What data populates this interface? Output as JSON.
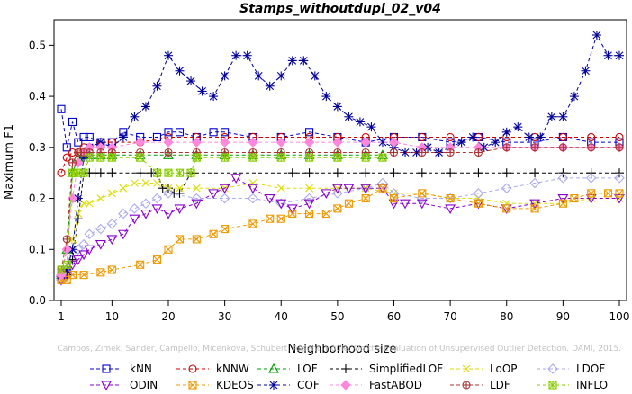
{
  "chart_data": {
    "type": "line",
    "title": "Stamps_withoutdupl_02_v04",
    "xlabel": "Neighborhood size",
    "ylabel": "Maximum F1",
    "xlim": [
      1,
      100
    ],
    "ylim": [
      0,
      0.55
    ],
    "xticks": [
      1,
      10,
      20,
      30,
      40,
      50,
      60,
      70,
      80,
      90,
      100
    ],
    "yticks": [
      0.0,
      0.1,
      0.2,
      0.3,
      0.4,
      0.5
    ],
    "xtick_labels": [
      "1",
      "10",
      "20",
      "30",
      "40",
      "50",
      "60",
      "70",
      "80",
      "90",
      "100"
    ],
    "ytick_labels": [
      "0.0",
      "0.1",
      "0.2",
      "0.3",
      "0.4",
      "0.5"
    ],
    "grid": false,
    "legend_position": "bottom",
    "watermark": "Campos, Zimek, Sander, Campello, Micenkova, Schubert, Assent, Houle: On the Evaluation of Unsupervised Outlier Detection. DAMI, 2015.",
    "series": [
      {
        "name": "kNN",
        "color": "#0000cc",
        "marker": "square",
        "x": [
          1,
          2,
          3,
          4,
          5,
          6,
          8,
          10,
          12,
          15,
          18,
          20,
          22,
          25,
          28,
          30,
          35,
          40,
          45,
          50,
          55,
          60,
          65,
          70,
          75,
          80,
          85,
          90,
          95,
          100
        ],
        "y": [
          0.375,
          0.3,
          0.35,
          0.31,
          0.32,
          0.32,
          0.31,
          0.31,
          0.33,
          0.32,
          0.32,
          0.33,
          0.33,
          0.32,
          0.33,
          0.33,
          0.32,
          0.32,
          0.33,
          0.32,
          0.31,
          0.32,
          0.32,
          0.31,
          0.32,
          0.31,
          0.31,
          0.32,
          0.31,
          0.31
        ]
      },
      {
        "name": "kNNW",
        "color": "#cc0000",
        "marker": "circle",
        "x": [
          1,
          2,
          3,
          4,
          5,
          6,
          8,
          10,
          15,
          20,
          25,
          30,
          35,
          40,
          45,
          50,
          55,
          60,
          65,
          70,
          75,
          80,
          85,
          90,
          95,
          100
        ],
        "y": [
          0.25,
          0.28,
          0.29,
          0.29,
          0.3,
          0.3,
          0.31,
          0.31,
          0.31,
          0.32,
          0.32,
          0.32,
          0.32,
          0.32,
          0.32,
          0.32,
          0.32,
          0.32,
          0.32,
          0.32,
          0.32,
          0.32,
          0.32,
          0.32,
          0.32,
          0.32
        ]
      },
      {
        "name": "LOF",
        "color": "#009900",
        "marker": "triangle",
        "x": [
          1,
          2,
          3,
          4,
          5,
          6,
          8,
          10,
          15,
          20,
          25,
          30,
          35,
          40,
          45,
          50,
          55,
          58
        ],
        "y": [
          0.05,
          0.1,
          0.25,
          0.28,
          0.285,
          0.285,
          0.285,
          0.285,
          0.285,
          0.285,
          0.285,
          0.285,
          0.285,
          0.285,
          0.285,
          0.285,
          0.285,
          0.285
        ]
      },
      {
        "name": "SimplifiedLOF",
        "color": "#000000",
        "marker": "plus",
        "x": [
          1,
          2,
          3,
          4,
          5,
          6,
          7,
          8,
          10,
          15,
          17,
          18,
          19,
          20,
          21,
          22,
          24,
          42,
          45,
          50,
          55,
          60,
          65,
          70,
          75,
          80,
          85,
          90,
          95,
          100
        ],
        "y": [
          0.05,
          0.05,
          0.08,
          0.16,
          0.25,
          0.25,
          0.25,
          0.25,
          0.25,
          0.25,
          0.25,
          0.25,
          0.22,
          0.22,
          0.21,
          0.21,
          0.25,
          0.25,
          0.25,
          0.25,
          0.25,
          0.25,
          0.25,
          0.25,
          0.25,
          0.25,
          0.25,
          0.25,
          0.25,
          0.25
        ]
      },
      {
        "name": "LoOP",
        "color": "#dddd00",
        "marker": "x",
        "x": [
          1,
          2,
          3,
          4,
          5,
          6,
          8,
          10,
          12,
          14,
          16,
          18,
          20,
          22,
          25,
          30,
          35,
          40,
          45,
          50,
          55,
          60,
          65,
          70,
          75,
          80,
          85,
          90,
          95,
          100
        ],
        "y": [
          0.04,
          0.06,
          0.12,
          0.17,
          0.19,
          0.19,
          0.2,
          0.21,
          0.22,
          0.23,
          0.23,
          0.23,
          0.22,
          0.22,
          0.22,
          0.22,
          0.23,
          0.22,
          0.22,
          0.22,
          0.22,
          0.21,
          0.21,
          0.2,
          0.2,
          0.19,
          0.19,
          0.19,
          0.2,
          0.2
        ]
      },
      {
        "name": "LDOF",
        "color": "#aaaaee",
        "marker": "diamond",
        "x": [
          1,
          2,
          3,
          4,
          5,
          6,
          8,
          10,
          12,
          14,
          16,
          18,
          20,
          25,
          30,
          35,
          40,
          45,
          50,
          55,
          58,
          60,
          65,
          70,
          75,
          80,
          85,
          90,
          95,
          100
        ],
        "y": [
          0.04,
          0.06,
          0.08,
          0.1,
          0.11,
          0.13,
          0.14,
          0.15,
          0.17,
          0.18,
          0.19,
          0.2,
          0.21,
          0.2,
          0.2,
          0.2,
          0.19,
          0.2,
          0.21,
          0.22,
          0.23,
          0.21,
          0.2,
          0.2,
          0.21,
          0.22,
          0.23,
          0.24,
          0.24,
          0.24
        ]
      },
      {
        "name": "ODIN",
        "color": "#8800cc",
        "marker": "triangle-down",
        "x": [
          1,
          2,
          3,
          4,
          5,
          6,
          8,
          10,
          12,
          14,
          16,
          18,
          20,
          22,
          25,
          28,
          30,
          32,
          35,
          38,
          40,
          42,
          45,
          48,
          50,
          52,
          55,
          58,
          60,
          62,
          65,
          70,
          75,
          80,
          85,
          90,
          95,
          100
        ],
        "y": [
          0.04,
          0.05,
          0.07,
          0.08,
          0.09,
          0.1,
          0.11,
          0.12,
          0.13,
          0.16,
          0.17,
          0.18,
          0.17,
          0.18,
          0.19,
          0.21,
          0.22,
          0.24,
          0.22,
          0.2,
          0.19,
          0.18,
          0.19,
          0.21,
          0.22,
          0.22,
          0.22,
          0.22,
          0.19,
          0.19,
          0.19,
          0.18,
          0.19,
          0.18,
          0.19,
          0.2,
          0.2,
          0.2
        ]
      },
      {
        "name": "KDEOS",
        "color": "#ee9900",
        "marker": "square-x",
        "x": [
          1,
          2,
          3,
          5,
          8,
          10,
          15,
          18,
          20,
          22,
          25,
          28,
          30,
          35,
          38,
          40,
          42,
          45,
          48,
          50,
          52,
          55,
          58,
          60,
          65,
          70,
          75,
          80,
          85,
          90,
          92,
          95,
          98,
          100
        ],
        "y": [
          0.04,
          0.04,
          0.05,
          0.05,
          0.055,
          0.06,
          0.07,
          0.08,
          0.1,
          0.12,
          0.12,
          0.13,
          0.14,
          0.15,
          0.16,
          0.16,
          0.17,
          0.17,
          0.17,
          0.18,
          0.19,
          0.2,
          0.22,
          0.2,
          0.21,
          0.2,
          0.19,
          0.18,
          0.18,
          0.19,
          0.2,
          0.21,
          0.21,
          0.21
        ]
      },
      {
        "name": "COF",
        "color": "#000099",
        "marker": "asterisk",
        "x": [
          1,
          2,
          3,
          4,
          5,
          6,
          8,
          10,
          12,
          14,
          16,
          18,
          20,
          22,
          24,
          26,
          28,
          30,
          32,
          34,
          36,
          38,
          40,
          42,
          44,
          46,
          48,
          50,
          52,
          54,
          56,
          58,
          60,
          62,
          64,
          66,
          68,
          70,
          72,
          74,
          76,
          78,
          80,
          82,
          84,
          86,
          88,
          90,
          92,
          94,
          96,
          98,
          100
        ],
        "y": [
          0.05,
          0.06,
          0.1,
          0.2,
          0.28,
          0.3,
          0.31,
          0.3,
          0.32,
          0.36,
          0.38,
          0.42,
          0.48,
          0.45,
          0.43,
          0.41,
          0.4,
          0.44,
          0.48,
          0.48,
          0.44,
          0.42,
          0.44,
          0.47,
          0.47,
          0.44,
          0.4,
          0.38,
          0.36,
          0.35,
          0.34,
          0.31,
          0.3,
          0.29,
          0.29,
          0.3,
          0.29,
          0.3,
          0.31,
          0.32,
          0.3,
          0.31,
          0.33,
          0.34,
          0.32,
          0.32,
          0.36,
          0.36,
          0.4,
          0.45,
          0.52,
          0.48,
          0.48
        ]
      },
      {
        "name": "FastABOD",
        "color": "#ff88dd",
        "marker": "diamond-filled",
        "x": [
          1,
          2,
          3,
          4,
          5,
          6,
          8,
          10,
          15,
          20,
          25,
          30,
          35,
          40,
          45,
          50,
          55,
          60,
          65,
          70,
          75,
          80,
          85,
          90,
          95,
          100
        ],
        "y": [
          0.05,
          0.1,
          0.2,
          0.27,
          0.29,
          0.3,
          0.3,
          0.3,
          0.31,
          0.31,
          0.31,
          0.31,
          0.31,
          0.31,
          0.31,
          0.31,
          0.31,
          0.31,
          0.3,
          0.3,
          0.3,
          0.3,
          0.3,
          0.3,
          0.3,
          0.3
        ]
      },
      {
        "name": "LDF",
        "color": "#aa3333",
        "marker": "circle-plus",
        "x": [
          1,
          2,
          3,
          4,
          5,
          6,
          8,
          10,
          15,
          20,
          25,
          30,
          35,
          40,
          45,
          50,
          55,
          60,
          65,
          70,
          75,
          80,
          85,
          90,
          95,
          100
        ],
        "y": [
          0.06,
          0.12,
          0.27,
          0.29,
          0.29,
          0.29,
          0.29,
          0.29,
          0.29,
          0.29,
          0.29,
          0.29,
          0.29,
          0.29,
          0.29,
          0.29,
          0.29,
          0.29,
          0.29,
          0.29,
          0.29,
          0.3,
          0.3,
          0.3,
          0.3,
          0.3
        ]
      },
      {
        "name": "INFLO",
        "color": "#88cc00",
        "marker": "square-star",
        "x": [
          1,
          2,
          3,
          4,
          5,
          6,
          8,
          10,
          15,
          18,
          20,
          22,
          24,
          25,
          30,
          35,
          40,
          45,
          50,
          55,
          58
        ],
        "y": [
          0.06,
          0.07,
          0.25,
          0.25,
          0.25,
          0.28,
          0.28,
          0.28,
          0.28,
          0.25,
          0.25,
          0.25,
          0.25,
          0.28,
          0.28,
          0.28,
          0.28,
          0.28,
          0.28,
          0.28,
          0.28
        ]
      }
    ]
  }
}
